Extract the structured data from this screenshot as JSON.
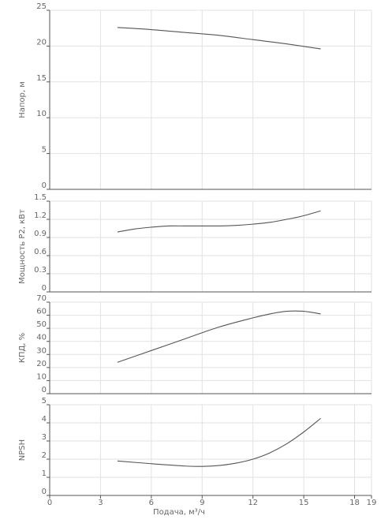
{
  "chart_data": [
    {
      "type": "line",
      "id": "head",
      "ylabel": "Напор, м",
      "xlim": [
        0,
        19
      ],
      "ylim": [
        0,
        25
      ],
      "yticks": [
        0,
        5,
        10,
        15,
        20,
        25
      ],
      "ytick_labels": [
        "0",
        "5",
        "10",
        "15",
        "20",
        "25"
      ],
      "grid": true,
      "line_color": "#555555",
      "x": [
        4,
        6,
        8,
        10,
        12,
        14,
        16
      ],
      "y": [
        22.6,
        22.3,
        21.9,
        21.5,
        20.9,
        20.3,
        19.6
      ]
    },
    {
      "type": "line",
      "id": "power",
      "ylabel": "Мощность P2, кВт",
      "xlim": [
        0,
        19
      ],
      "ylim": [
        0,
        1.5
      ],
      "yticks": [
        0,
        0.3,
        0.6,
        0.9,
        1.2,
        1.5
      ],
      "ytick_labels": [
        "0",
        "0.3",
        "0.6",
        "0.9",
        "1.2",
        "1.5"
      ],
      "grid": true,
      "line_color": "#555555",
      "x": [
        4,
        5,
        6,
        7,
        8,
        9,
        10,
        11,
        12,
        13,
        14,
        15,
        16
      ],
      "y": [
        0.99,
        1.04,
        1.07,
        1.09,
        1.09,
        1.09,
        1.09,
        1.1,
        1.12,
        1.15,
        1.2,
        1.26,
        1.34
      ]
    },
    {
      "type": "line",
      "id": "efficiency",
      "ylabel": "КПД, %",
      "xlim": [
        0,
        19
      ],
      "ylim": [
        0,
        70
      ],
      "yticks": [
        0,
        10,
        20,
        30,
        40,
        50,
        60,
        70
      ],
      "ytick_labels": [
        "0",
        "10",
        "20",
        "30",
        "40",
        "50",
        "60",
        "70"
      ],
      "grid": true,
      "line_color": "#555555",
      "x": [
        4,
        6,
        8,
        10,
        12,
        13,
        14,
        15,
        16
      ],
      "y": [
        24,
        33,
        42,
        51,
        58,
        61,
        63,
        63,
        61
      ]
    },
    {
      "type": "line",
      "id": "npsh",
      "ylabel": "NPSH",
      "xlabel": "Подача, м³/ч",
      "xlim": [
        0,
        19
      ],
      "xticks": [
        0,
        3,
        6,
        9,
        12,
        15,
        18,
        19
      ],
      "xtick_labels": [
        "0",
        "3",
        "6",
        "9",
        "12",
        "15",
        "18",
        "19"
      ],
      "ylim": [
        0,
        5
      ],
      "yticks": [
        0,
        1,
        2,
        3,
        4,
        5
      ],
      "ytick_labels": [
        "0",
        "1",
        "2",
        "3",
        "4",
        "5"
      ],
      "grid": true,
      "line_color": "#555555",
      "x": [
        4,
        6,
        8,
        9,
        10,
        11,
        12,
        13,
        14,
        15,
        16
      ],
      "y": [
        1.9,
        1.75,
        1.62,
        1.6,
        1.65,
        1.78,
        2.0,
        2.35,
        2.85,
        3.5,
        4.25
      ]
    }
  ]
}
